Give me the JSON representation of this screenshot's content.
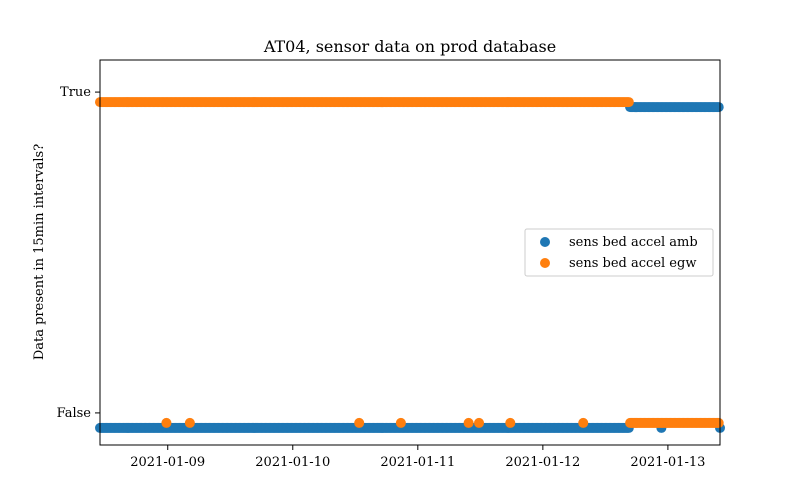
{
  "chart_data": {
    "type": "scatter",
    "title": "AT04, sensor data on prod database",
    "xlabel": "",
    "ylabel": "Data present in 15min intervals?",
    "x_type": "date",
    "xlim": [
      "2021-01-08 11:00",
      "2021-01-13 10:00"
    ],
    "x_ticks": [
      "2021-01-09",
      "2021-01-10",
      "2021-01-11",
      "2021-01-12",
      "2021-01-13"
    ],
    "y_ticks": [
      "False",
      "True"
    ],
    "ylim": [
      -0.1,
      1.1
    ],
    "grid": false,
    "legend_position": "center-right",
    "colors": {
      "amb": "#1f77b4",
      "egw": "#ff7f0e"
    },
    "series": [
      {
        "name": "sens bed accel amb",
        "color": "#1f77b4",
        "segments": [
          {
            "start": "2021-01-08 11:00",
            "end": "2021-01-12 16:45",
            "value": false
          },
          {
            "start": "2021-01-12 16:45",
            "end": "2021-01-13 10:00",
            "value": true
          }
        ],
        "isolated_points": [
          {
            "x": "2021-01-12 22:45",
            "value": false
          },
          {
            "x": "2021-01-13 10:00",
            "value": false
          }
        ]
      },
      {
        "name": "sens bed accel egw",
        "color": "#ff7f0e",
        "segments": [
          {
            "start": "2021-01-08 11:00",
            "end": "2021-01-12 16:45",
            "value": true
          },
          {
            "start": "2021-01-12 16:45",
            "end": "2021-01-13 10:00",
            "value": false
          }
        ],
        "isolated_points": [
          {
            "x": "2021-01-08 23:45",
            "value": false
          },
          {
            "x": "2021-01-09 04:15",
            "value": false
          },
          {
            "x": "2021-01-10 12:45",
            "value": false
          },
          {
            "x": "2021-01-10 20:45",
            "value": false
          },
          {
            "x": "2021-01-11 09:45",
            "value": false
          },
          {
            "x": "2021-01-11 11:45",
            "value": false
          },
          {
            "x": "2021-01-11 17:45",
            "value": false
          },
          {
            "x": "2021-01-12 07:45",
            "value": false
          }
        ]
      }
    ]
  }
}
